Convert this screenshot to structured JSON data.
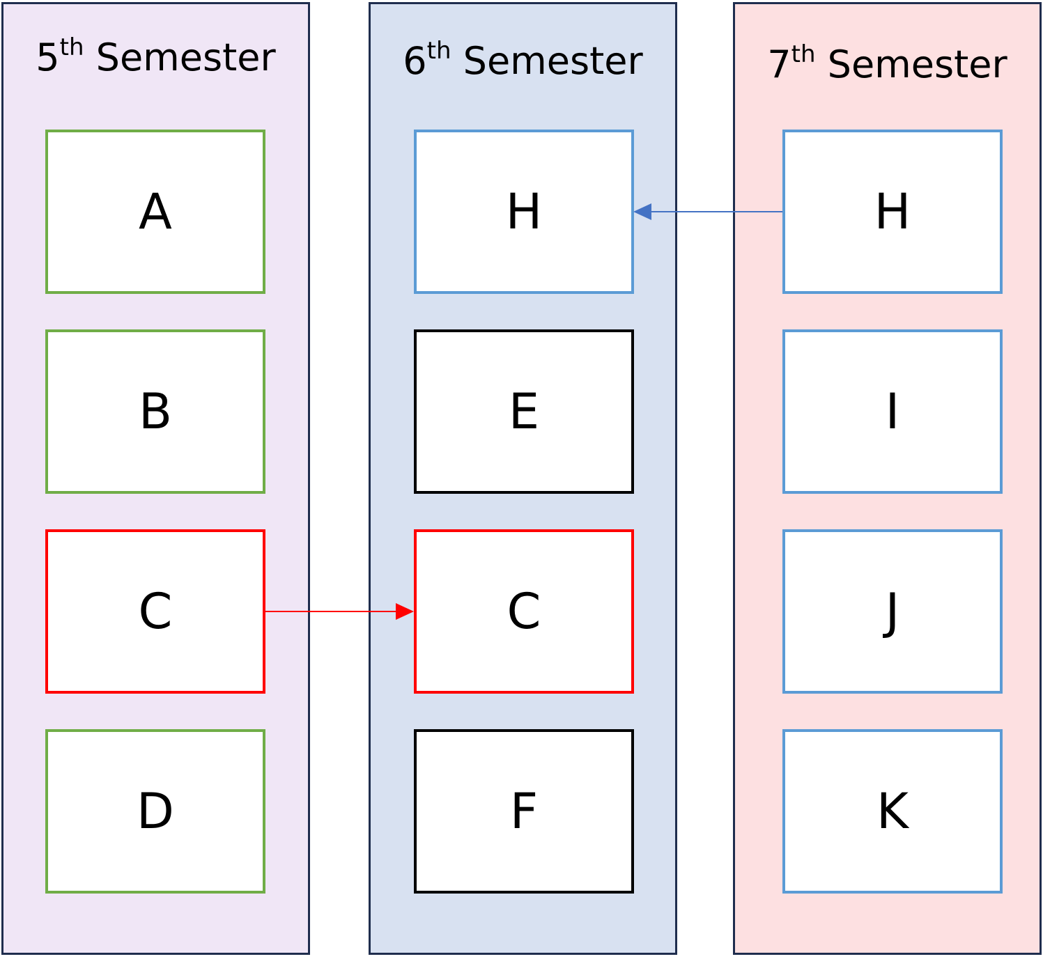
{
  "columns": [
    {
      "id": "5",
      "ordinal": "5",
      "suffix": "th",
      "title": "Semester",
      "background": "#f0e6f6",
      "boxes": [
        {
          "label": "A",
          "border": "#70ad47"
        },
        {
          "label": "B",
          "border": "#70ad47"
        },
        {
          "label": "C",
          "border": "#ff0000"
        },
        {
          "label": "D",
          "border": "#70ad47"
        }
      ]
    },
    {
      "id": "6",
      "ordinal": "6",
      "suffix": "th",
      "title": "Semester",
      "background": "#d8e1f1",
      "boxes": [
        {
          "label": "H",
          "border": "#5b9bd5"
        },
        {
          "label": "E",
          "border": "#000000"
        },
        {
          "label": "C",
          "border": "#ff0000"
        },
        {
          "label": "F",
          "border": "#000000"
        }
      ]
    },
    {
      "id": "7",
      "ordinal": "7",
      "suffix": "th",
      "title": "Semester",
      "background": "#fde0e1",
      "boxes": [
        {
          "label": "H",
          "border": "#5b9bd5"
        },
        {
          "label": "I",
          "border": "#5b9bd5"
        },
        {
          "label": "J",
          "border": "#5b9bd5"
        },
        {
          "label": "K",
          "border": "#5b9bd5"
        }
      ]
    }
  ],
  "arrows": [
    {
      "from": "5th Semester C",
      "to": "6th Semester C",
      "color": "#ff0000"
    },
    {
      "from": "7th Semester H",
      "to": "6th Semester H",
      "color": "#4472c4"
    }
  ]
}
